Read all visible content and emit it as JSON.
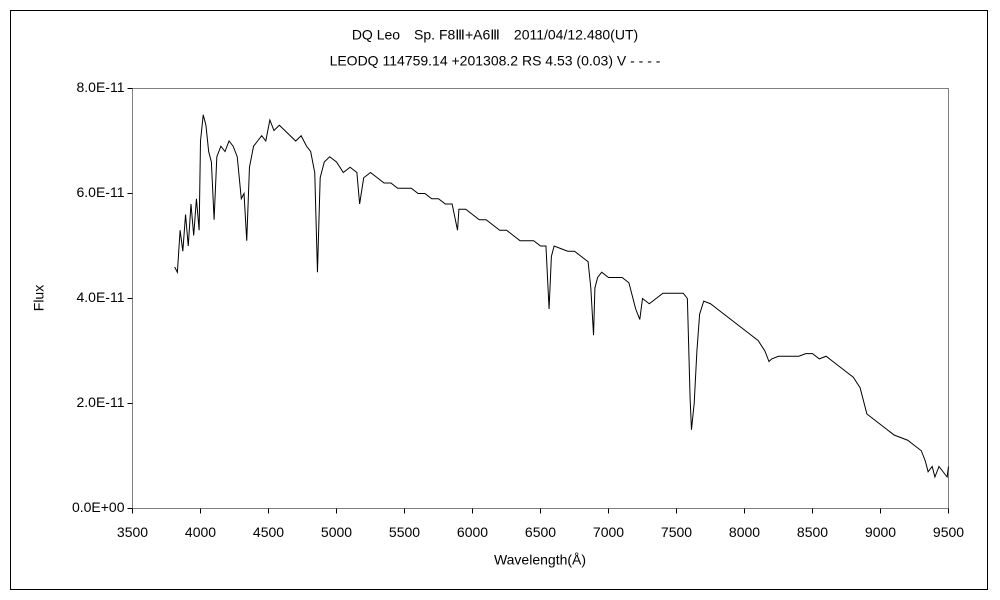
{
  "chart_data": {
    "type": "line",
    "title": "DQ Leo　Sp. F8Ⅲ+A6Ⅲ　2011/04/12.480(UT)",
    "subtitle": "LEODQ 114759.14 +201308.2 RS 4.53 (0.03) V - - - -",
    "x_label": "Wavelength(Å)",
    "y_label": "Flux",
    "color": "#000000",
    "grid": false,
    "xlim": [
      3500,
      9500
    ],
    "xticks": [
      3500,
      4000,
      4500,
      5000,
      5500,
      6000,
      6500,
      7000,
      7500,
      8000,
      8500,
      9000,
      9500
    ],
    "ylim": [
      0,
      8e-11
    ],
    "yticks": [
      {
        "value": 0,
        "label": "0.0E+00"
      },
      {
        "value": 2e-11,
        "label": "2.0E-11"
      },
      {
        "value": 4e-11,
        "label": "4.0E-11"
      },
      {
        "value": 6e-11,
        "label": "6.0E-11"
      },
      {
        "value": 8e-11,
        "label": "8.0E-11"
      }
    ],
    "x": [
      3810,
      3830,
      3850,
      3870,
      3890,
      3910,
      3930,
      3950,
      3970,
      3990,
      4000,
      4020,
      4040,
      4060,
      4080,
      4100,
      4120,
      4150,
      4180,
      4210,
      4240,
      4270,
      4300,
      4320,
      4340,
      4360,
      4390,
      4420,
      4450,
      4480,
      4510,
      4540,
      4580,
      4620,
      4660,
      4700,
      4740,
      4780,
      4810,
      4840,
      4860,
      4880,
      4910,
      4950,
      5000,
      5050,
      5100,
      5150,
      5170,
      5200,
      5250,
      5300,
      5350,
      5400,
      5450,
      5500,
      5550,
      5600,
      5650,
      5700,
      5750,
      5800,
      5850,
      5890,
      5900,
      5950,
      6000,
      6050,
      6100,
      6150,
      6200,
      6250,
      6300,
      6350,
      6400,
      6450,
      6500,
      6540,
      6563,
      6580,
      6600,
      6650,
      6700,
      6750,
      6800,
      6850,
      6870,
      6890,
      6900,
      6920,
      6950,
      7000,
      7050,
      7100,
      7150,
      7200,
      7230,
      7250,
      7300,
      7350,
      7400,
      7450,
      7500,
      7550,
      7580,
      7600,
      7610,
      7630,
      7650,
      7670,
      7700,
      7750,
      7800,
      7850,
      7900,
      7950,
      8000,
      8050,
      8100,
      8150,
      8180,
      8200,
      8250,
      8300,
      8350,
      8400,
      8450,
      8500,
      8550,
      8600,
      8650,
      8700,
      8750,
      8800,
      8850,
      8900,
      8950,
      9000,
      9050,
      9100,
      9150,
      9200,
      9250,
      9300,
      9330,
      9350,
      9380,
      9400,
      9430,
      9460,
      9490,
      9500
    ],
    "values": [
      4.6e-11,
      4.5e-11,
      5.3e-11,
      4.9e-11,
      5.6e-11,
      5e-11,
      5.8e-11,
      5.2e-11,
      5.9e-11,
      5.3e-11,
      7e-11,
      7.5e-11,
      7.3e-11,
      6.8e-11,
      6.6e-11,
      5.5e-11,
      6.7e-11,
      6.9e-11,
      6.8e-11,
      7e-11,
      6.9e-11,
      6.7e-11,
      5.9e-11,
      6e-11,
      5.1e-11,
      6.5e-11,
      6.9e-11,
      7e-11,
      7.1e-11,
      7e-11,
      7.4e-11,
      7.2e-11,
      7.3e-11,
      7.2e-11,
      7.1e-11,
      7e-11,
      7.1e-11,
      6.9e-11,
      6.8e-11,
      6.4e-11,
      4.5e-11,
      6.3e-11,
      6.6e-11,
      6.7e-11,
      6.6e-11,
      6.4e-11,
      6.5e-11,
      6.4e-11,
      5.8e-11,
      6.3e-11,
      6.4e-11,
      6.3e-11,
      6.2e-11,
      6.2e-11,
      6.1e-11,
      6.1e-11,
      6.1e-11,
      6e-11,
      6e-11,
      5.9e-11,
      5.9e-11,
      5.8e-11,
      5.8e-11,
      5.3e-11,
      5.7e-11,
      5.7e-11,
      5.6e-11,
      5.5e-11,
      5.5e-11,
      5.4e-11,
      5.3e-11,
      5.3e-11,
      5.2e-11,
      5.1e-11,
      5.1e-11,
      5.1e-11,
      5e-11,
      5e-11,
      3.8e-11,
      4.8e-11,
      5e-11,
      4.95e-11,
      4.9e-11,
      4.9e-11,
      4.8e-11,
      4.7e-11,
      4.2e-11,
      3.3e-11,
      4.2e-11,
      4.4e-11,
      4.5e-11,
      4.4e-11,
      4.4e-11,
      4.4e-11,
      4.3e-11,
      3.8e-11,
      3.6e-11,
      4e-11,
      3.9e-11,
      4e-11,
      4.1e-11,
      4.1e-11,
      4.1e-11,
      4.1e-11,
      4e-11,
      2.1e-11,
      1.5e-11,
      2e-11,
      3e-11,
      3.7e-11,
      3.95e-11,
      3.9e-11,
      3.8e-11,
      3.7e-11,
      3.6e-11,
      3.5e-11,
      3.4e-11,
      3.3e-11,
      3.2e-11,
      3e-11,
      2.8e-11,
      2.85e-11,
      2.9e-11,
      2.9e-11,
      2.9e-11,
      2.9e-11,
      2.95e-11,
      2.95e-11,
      2.85e-11,
      2.9e-11,
      2.8e-11,
      2.7e-11,
      2.6e-11,
      2.5e-11,
      2.3e-11,
      1.8e-11,
      1.7e-11,
      1.6e-11,
      1.5e-11,
      1.4e-11,
      1.35e-11,
      1.3e-11,
      1.2e-11,
      1.1e-11,
      9e-12,
      7e-12,
      8e-12,
      6e-12,
      8e-12,
      7e-12,
      6e-12,
      8e-12
    ]
  }
}
